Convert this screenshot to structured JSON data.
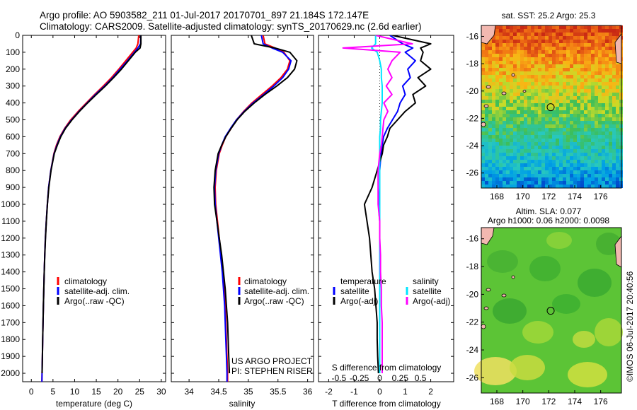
{
  "title": {
    "line1": "Argo profile: AO 5903582_211 01-Jul-2017 20170701_897 21.184S 172.147E",
    "line2": "Climatology: CARS2009. Satellite-adjusted climatology: synTS_20170629.nc (2.6d earlier)"
  },
  "colors": {
    "climatology": "#ff0000",
    "satellite": "#0000ff",
    "argo": "#000000",
    "satellite_salinity": "#00e5ff",
    "argo_salinity": "#ff00ff"
  },
  "project_text": {
    "line1": "US ARGO PROJECT",
    "line2": "PI: STEPHEN RISER"
  },
  "credit": "©IMOS 06-Jul-2017 20:40:56",
  "legend_profiles": {
    "climatology": "climatology",
    "satellite": "satellite-adj. clim.",
    "argo": "Argo(..raw -QC)"
  },
  "legend_diff": {
    "temperature_head": "temperature",
    "salinity_head": "salinity",
    "satellite": "satellite",
    "argo": "Argo(-adj)"
  },
  "sst_map": {
    "title": "sat. SST: 25.2  Argo: 25.3",
    "xticks": [
      "168",
      "170",
      "172",
      "174",
      "176"
    ],
    "yticks": [
      "-16",
      "-18",
      "-20",
      "-22",
      "-24",
      "-26"
    ],
    "profile_lon": 172.147,
    "profile_lat": -21.184
  },
  "sla_map": {
    "title1": "Altim. SLA: 0.077",
    "title2": "Argo h1000: 0.06 h2000: 0.0098",
    "xticks": [
      "168",
      "170",
      "172",
      "174",
      "176"
    ],
    "yticks": [
      "-16",
      "-18",
      "-20",
      "-22",
      "-24",
      "-26"
    ],
    "profile_lon": 172.147,
    "profile_lat": -21.184
  },
  "chart_data": [
    {
      "type": "line",
      "name": "temperature-profile",
      "xlabel": "temperature (deg C)",
      "ylabel": "pressure",
      "xlim": [
        -2,
        31
      ],
      "ylim": [
        2050,
        0
      ],
      "xticks": [
        "0",
        "5",
        "10",
        "15",
        "20",
        "25",
        "30"
      ],
      "yticks": [
        "0",
        "100",
        "200",
        "300",
        "400",
        "500",
        "600",
        "700",
        "800",
        "900",
        "1000",
        "1100",
        "1200",
        "1300",
        "1400",
        "1500",
        "1600",
        "1700",
        "1800",
        "1900",
        "2000"
      ],
      "depth": [
        0,
        50,
        75,
        100,
        150,
        200,
        250,
        300,
        350,
        400,
        450,
        500,
        550,
        600,
        650,
        700,
        800,
        900,
        1000,
        1100,
        1200,
        1300,
        1400,
        1500,
        1600,
        1700,
        1800,
        1900,
        2000,
        2050
      ],
      "series": [
        {
          "name": "climatology",
          "values": [
            24.8,
            24.6,
            24.2,
            23.4,
            21.8,
            20.2,
            18.5,
            16.6,
            14.6,
            12.7,
            10.8,
            9.1,
            7.7,
            6.6,
            5.8,
            5.2,
            4.5,
            4.0,
            3.7,
            3.45,
            3.25,
            3.1,
            2.98,
            2.88,
            2.78,
            2.7,
            2.62,
            2.55,
            2.48,
            2.44
          ]
        },
        {
          "name": "satellite",
          "values": [
            25.3,
            25.2,
            24.6,
            23.8,
            22.2,
            20.5,
            18.8,
            16.9,
            14.8,
            12.9,
            11.0,
            9.3,
            7.8,
            6.7,
            5.9,
            5.25,
            4.5,
            4.0,
            3.7,
            3.45,
            3.25,
            3.1,
            2.98,
            2.88,
            2.78,
            2.7,
            2.62,
            2.55,
            2.48,
            2.44
          ]
        },
        {
          "name": "argo",
          "values": [
            25.3,
            25.3,
            25.1,
            24.0,
            22.4,
            20.8,
            19.0,
            17.1,
            15.0,
            13.0,
            11.1,
            9.4,
            7.9,
            6.8,
            6.0,
            5.3,
            4.55,
            4.05,
            3.72,
            3.47,
            3.27,
            3.12,
            2.99,
            2.89,
            2.79,
            2.71,
            2.63,
            2.56,
            2.49
          ]
        }
      ]
    },
    {
      "type": "line",
      "name": "salinity-profile",
      "xlabel": "salinity",
      "ylabel": "pressure",
      "xlim": [
        33.7,
        36.1
      ],
      "ylim": [
        2050,
        0
      ],
      "xticks": [
        "34",
        "34.5",
        "35",
        "35.5",
        "36"
      ],
      "depth": [
        0,
        50,
        75,
        100,
        150,
        200,
        250,
        300,
        350,
        400,
        450,
        500,
        550,
        600,
        650,
        700,
        800,
        900,
        1000,
        1100,
        1200,
        1300,
        1400,
        1500,
        1600,
        1700,
        1800,
        1900,
        2000,
        2050
      ],
      "series": [
        {
          "name": "climatology",
          "values": [
            35.25,
            35.28,
            35.45,
            35.6,
            35.7,
            35.66,
            35.55,
            35.4,
            35.23,
            35.06,
            34.92,
            34.8,
            34.71,
            34.62,
            34.56,
            34.51,
            34.46,
            34.44,
            34.45,
            34.48,
            34.51,
            34.54,
            34.57,
            34.59,
            34.61,
            34.62,
            34.63,
            34.64,
            34.65,
            34.65
          ]
        },
        {
          "name": "satellite",
          "values": [
            35.22,
            35.25,
            35.4,
            35.58,
            35.72,
            35.68,
            35.58,
            35.43,
            35.26,
            35.08,
            34.93,
            34.8,
            34.7,
            34.61,
            34.55,
            34.5,
            34.45,
            34.43,
            34.44,
            34.47,
            34.5,
            34.53,
            34.56,
            34.58,
            34.6,
            34.61,
            34.62,
            34.63,
            34.64,
            34.64
          ]
        },
        {
          "name": "argo",
          "values": [
            35.05,
            35.1,
            35.45,
            35.7,
            35.82,
            35.78,
            35.66,
            35.48,
            35.28,
            35.1,
            34.94,
            34.81,
            34.71,
            34.62,
            34.55,
            34.49,
            34.44,
            34.42,
            34.43,
            34.47,
            34.51,
            34.55,
            34.58,
            34.61,
            34.63,
            34.65,
            34.66,
            34.67,
            34.68
          ]
        }
      ]
    },
    {
      "type": "line",
      "name": "difference-profile",
      "xlabel": "T difference from climatology",
      "xlabel_top": "S difference from climatology",
      "ylabel": "pressure",
      "xlim": [
        -2.4,
        2.9
      ],
      "ylim": [
        2050,
        0
      ],
      "xticks": [
        "-2",
        "-1",
        "0",
        "1",
        "2"
      ],
      "xticks_s": [
        "-0.5",
        "-0.25",
        "0",
        "0.25",
        "0.5"
      ],
      "depth": [
        0,
        50,
        75,
        100,
        150,
        200,
        250,
        300,
        350,
        400,
        450,
        500,
        550,
        600,
        650,
        700,
        800,
        900,
        1000,
        1100,
        1200,
        1300,
        1400,
        1500,
        1600,
        1700,
        1800,
        1900,
        2000
      ],
      "series": [
        {
          "name": "temperature-satellite",
          "values": [
            0.4,
            0.9,
            1.3,
            1.0,
            1.4,
            1.1,
            1.2,
            0.9,
            1.0,
            0.8,
            0.7,
            0.5,
            0.3,
            0.15,
            0.1,
            0.05,
            0.0,
            0.0,
            -0.05,
            0.0,
            0.0,
            0.0,
            0.0,
            0.0,
            0.0,
            0.0,
            0.0,
            0.0,
            0.0
          ]
        },
        {
          "name": "temperature-argo",
          "values": [
            0.5,
            2.0,
            1.6,
            1.7,
            1.6,
            2.0,
            1.5,
            1.8,
            1.3,
            1.4,
            1.0,
            0.7,
            0.4,
            0.3,
            0.15,
            0.1,
            -0.1,
            -0.3,
            -0.6,
            -0.5,
            -0.4,
            -0.35,
            -0.3,
            -0.2,
            -0.15,
            -0.1,
            -0.1,
            -0.08,
            -0.05
          ]
        },
        {
          "name": "salinity-satellite",
          "values": [
            -0.05,
            -0.05,
            -0.1,
            -0.03,
            0.0,
            0.02,
            0.02,
            0.03,
            0.03,
            0.03,
            0.02,
            0.01,
            0.01,
            0.0,
            0.0,
            0.0,
            0.0,
            0.0,
            0.0,
            0.0,
            0.0,
            0.0,
            0.0,
            0.0,
            0.0,
            0.0,
            0.0,
            0.0,
            0.0
          ]
        },
        {
          "name": "salinity-argo",
          "values": [
            -0.05,
            0.4,
            -0.45,
            0.25,
            0.15,
            0.1,
            0.15,
            0.08,
            0.15,
            0.05,
            0.1,
            0.05,
            0.04,
            0.03,
            0.02,
            0.0,
            -0.02,
            -0.02,
            -0.02,
            0.0,
            0.0,
            0.01,
            0.01,
            0.02,
            0.02,
            0.03,
            0.03,
            0.03,
            0.03
          ]
        }
      ]
    }
  ]
}
